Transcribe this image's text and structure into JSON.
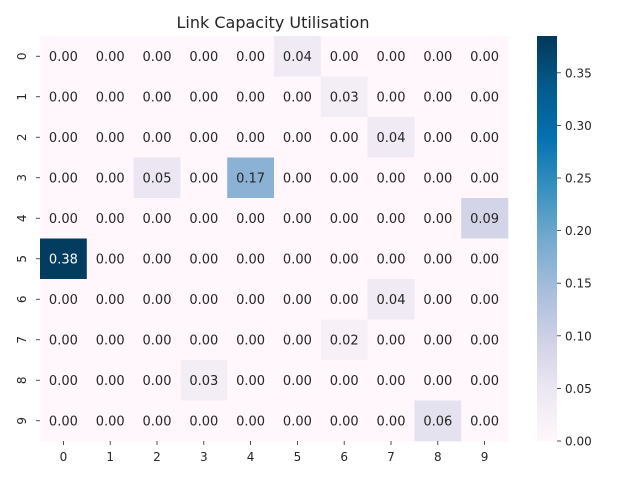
{
  "chart_data": {
    "type": "heatmap",
    "title": "Link Capacity Utilisation",
    "x_labels": [
      "0",
      "1",
      "2",
      "3",
      "4",
      "5",
      "6",
      "7",
      "8",
      "9"
    ],
    "y_labels": [
      "0",
      "1",
      "2",
      "3",
      "4",
      "5",
      "6",
      "7",
      "8",
      "9"
    ],
    "values": [
      [
        0.0,
        0.0,
        0.0,
        0.0,
        0.0,
        0.04,
        0.0,
        0.0,
        0.0,
        0.0
      ],
      [
        0.0,
        0.0,
        0.0,
        0.0,
        0.0,
        0.0,
        0.03,
        0.0,
        0.0,
        0.0
      ],
      [
        0.0,
        0.0,
        0.0,
        0.0,
        0.0,
        0.0,
        0.0,
        0.04,
        0.0,
        0.0
      ],
      [
        0.0,
        0.0,
        0.05,
        0.0,
        0.17,
        0.0,
        0.0,
        0.0,
        0.0,
        0.0
      ],
      [
        0.0,
        0.0,
        0.0,
        0.0,
        0.0,
        0.0,
        0.0,
        0.0,
        0.0,
        0.09
      ],
      [
        0.38,
        0.0,
        0.0,
        0.0,
        0.0,
        0.0,
        0.0,
        0.0,
        0.0,
        0.0
      ],
      [
        0.0,
        0.0,
        0.0,
        0.0,
        0.0,
        0.0,
        0.0,
        0.04,
        0.0,
        0.0
      ],
      [
        0.0,
        0.0,
        0.0,
        0.0,
        0.0,
        0.0,
        0.02,
        0.0,
        0.0,
        0.0
      ],
      [
        0.0,
        0.0,
        0.0,
        0.03,
        0.0,
        0.0,
        0.0,
        0.0,
        0.0,
        0.0
      ],
      [
        0.0,
        0.0,
        0.0,
        0.0,
        0.0,
        0.0,
        0.0,
        0.0,
        0.06,
        0.0
      ]
    ],
    "colormap": "PuBu",
    "vmin": 0.0,
    "vmax": 0.385,
    "colorbar_ticks": [
      "0.00",
      "0.05",
      "0.10",
      "0.15",
      "0.20",
      "0.25",
      "0.30",
      "0.35"
    ],
    "colorbar_tick_values": [
      0.0,
      0.05,
      0.1,
      0.15,
      0.2,
      0.25,
      0.3,
      0.35
    ],
    "annotation_light_color": "#ffffff",
    "annotation_dark_color": "#262626"
  }
}
